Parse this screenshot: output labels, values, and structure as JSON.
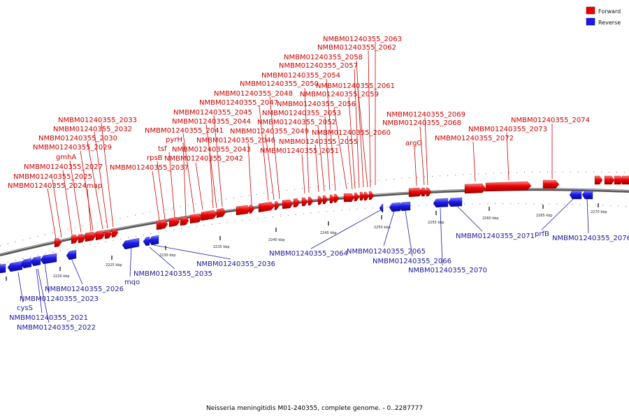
{
  "caption": "Neisseria meningitidis M01-240355, complete genome. - 0..2287777",
  "legend": {
    "forward": {
      "label": "Forward",
      "color": "#ee0000"
    },
    "reverse": {
      "label": "Reverse",
      "color": "#1a1aee"
    }
  },
  "ticks": [
    "2220 kbp",
    "2225 kbp",
    "2230 kbp",
    "2235 kbp",
    "2240 kbp",
    "2245 kbp",
    "2250 kbp",
    "2255 kbp",
    "2260 kbp",
    "2265 kbp",
    "2270 kbp"
  ],
  "forward_labels": [
    "NMBM01240355_2063",
    "NMBM01240355_2062",
    "NMBM01240355_2058",
    "NMBM01240355_2057",
    "NMBM01240355_2054",
    "NMBM01240355_2050",
    "NMBM01240355_2061",
    "NMBM01240355_2048",
    "NMBM01240355_2059",
    "NMBM01240355_2047",
    "NMBM01240355_2056",
    "NMBM01240355_2045",
    "NMBM01240355_2053",
    "NMBM01240355_2069",
    "NMBM01240355_2033",
    "NMBM01240355_2044",
    "NMBM01240355_2052",
    "NMBM01240355_2068",
    "NMBM01240355_2074",
    "NMBM01240355_2032",
    "NMBM01240355_2041",
    "NMBM01240355_2049",
    "NMBM01240355_2060",
    "NMBM01240355_2073",
    "NMBM01240355_2030",
    "pyrH",
    "NMBM01240355_2046",
    "NMBM01240355_2055",
    "NMBM01240355_2072",
    "argG",
    "NMBM01240355_2029",
    "tsf",
    "NMBM01240355_2043",
    "NMBM01240355_2051",
    "gmhA",
    "rpsB",
    "NMBM01240355_2042",
    "NMBM01240355_2027",
    "NMBM01240355_2037",
    "NMBM01240355_2025",
    "NMBM01240355_2024",
    "map"
  ],
  "reverse_labels": [
    "NMBM01240355_2071",
    "prfB",
    "NMBM01240355_2076",
    "NMBM01240355_2064",
    "NMBM01240355_2065",
    "NMBM01240355_2066",
    "NMBM01240355_2036",
    "NMBM01240355_2070",
    "NMBM01240355_2035",
    "mqo",
    "NMBM01240355_2026",
    "NMBM01240355_2023",
    "cysS",
    "NMBM01240355_2021",
    "NMBM01240355_2022"
  ]
}
